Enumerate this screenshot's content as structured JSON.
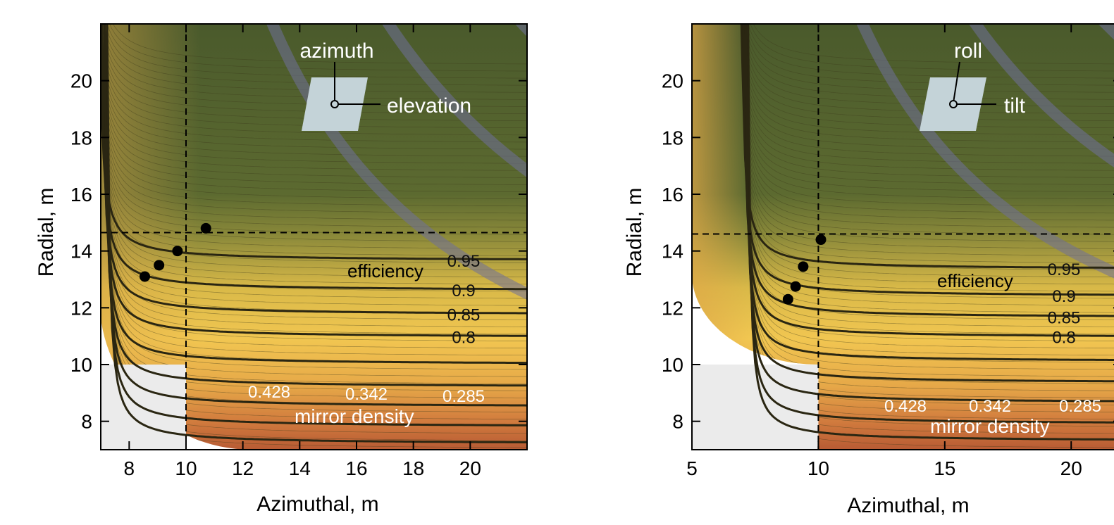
{
  "chart_data": [
    {
      "type": "contour",
      "xlabel": "Azimuthal, m",
      "ylabel": "Radial, m",
      "xlim": [
        7,
        22
      ],
      "ylim": [
        7,
        22
      ],
      "xticks": [
        8,
        10,
        12,
        14,
        16,
        18,
        20
      ],
      "yticks": [
        8,
        10,
        12,
        14,
        16,
        18,
        20
      ],
      "cross_lines": {
        "x": 10,
        "y": 14.65
      },
      "inset": {
        "label_top": "azimuth",
        "label_right": "elevation"
      },
      "region_label_efficiency": "efficiency",
      "region_label_density": "mirror density",
      "efficiency_levels": [
        {
          "label": "0.95",
          "y_right": 13.65
        },
        {
          "label": "0.9",
          "y_right": 12.6
        },
        {
          "label": "0.85",
          "y_right": 11.75
        },
        {
          "label": "0.8",
          "y_right": 10.95
        },
        {
          "label": "",
          "y_right": 10.0
        },
        {
          "label": "",
          "y_right": 9.2
        },
        {
          "label": "",
          "y_right": 8.5
        },
        {
          "label": "",
          "y_right": 7.8
        },
        {
          "label": "",
          "y_right": 7.2
        }
      ],
      "density_levels": [
        {
          "label": "0.428",
          "k": 12.0
        },
        {
          "label": "0.342",
          "k": 18.5
        },
        {
          "label": "0.285",
          "k": 26.0
        }
      ],
      "points": [
        {
          "x": 8.55,
          "y": 13.1
        },
        {
          "x": 9.05,
          "y": 13.5
        },
        {
          "x": 9.7,
          "y": 14.0
        },
        {
          "x": 10.7,
          "y": 14.8
        }
      ]
    },
    {
      "type": "contour",
      "xlabel": "Azimuthal, m",
      "ylabel": "Radial, m",
      "xlim": [
        5,
        22
      ],
      "ylim": [
        7,
        22
      ],
      "xticks": [
        5,
        10,
        15,
        20
      ],
      "yticks": [
        8,
        10,
        12,
        14,
        16,
        18,
        20
      ],
      "cross_lines": {
        "x": 10,
        "y": 14.6
      },
      "inset": {
        "label_top": "roll",
        "label_right": "tilt"
      },
      "region_label_efficiency": "efficiency",
      "region_label_density": "mirror density",
      "efficiency_levels": [
        {
          "label": "0.95",
          "y_right": 13.35
        },
        {
          "label": "0.9",
          "y_right": 12.4
        },
        {
          "label": "0.85",
          "y_right": 11.65
        },
        {
          "label": "0.8",
          "y_right": 10.95
        },
        {
          "label": "",
          "y_right": 10.1
        },
        {
          "label": "",
          "y_right": 9.35
        },
        {
          "label": "",
          "y_right": 8.65
        },
        {
          "label": "",
          "y_right": 7.9
        },
        {
          "label": "",
          "y_right": 7.3
        }
      ],
      "density_levels": [
        {
          "label": "0.428",
          "k": 12.0
        },
        {
          "label": "0.342",
          "k": 18.5
        },
        {
          "label": "0.285",
          "k": 26.0
        }
      ],
      "points": [
        {
          "x": 8.8,
          "y": 12.3
        },
        {
          "x": 9.1,
          "y": 12.75
        },
        {
          "x": 9.4,
          "y": 13.45
        },
        {
          "x": 10.1,
          "y": 14.4
        }
      ]
    }
  ]
}
